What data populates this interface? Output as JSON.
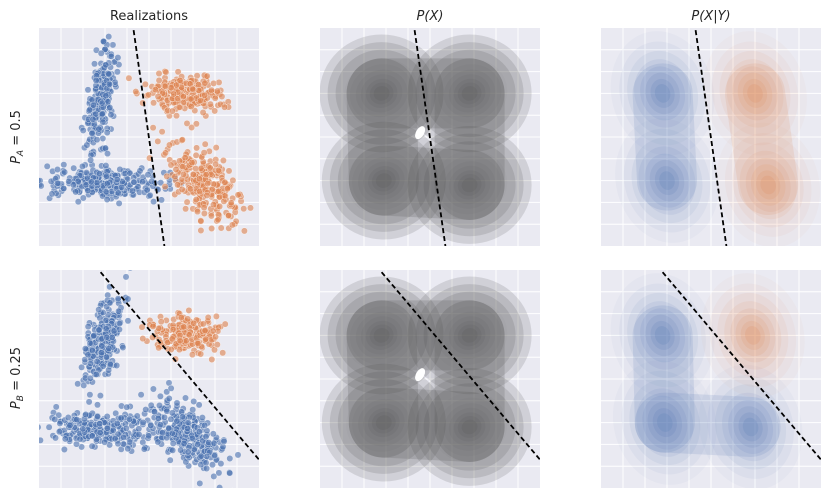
{
  "column_titles": [
    "Realizations",
    "P(X)",
    "P(X|Y)"
  ],
  "row_labels": [
    {
      "sym": "P",
      "sub": "A",
      "rest": " = 0.5"
    },
    {
      "sym": "P",
      "sub": "B",
      "rest": " = 0.25"
    }
  ],
  "colors": {
    "panel_bg": "#eaeaf2",
    "grid": "#ffffff",
    "class_a": "#4c72b0",
    "class_b": "#dd8452",
    "density_gray": "#4a4a4a",
    "boundary": "#000000"
  },
  "chart_data": [
    {
      "type": "scatter",
      "row": 0,
      "col": 0,
      "title": "Realizations",
      "xlim": [
        0,
        10
      ],
      "ylim": [
        0,
        10
      ],
      "grid": true,
      "series": [
        {
          "color": "#4c72b0",
          "clusters": [
            {
              "cx": 2.8,
              "cy": 6.7,
              "sx": 0.42,
              "sy": 1.35,
              "rho": 0.55,
              "n": 250
            },
            {
              "cx": 3.0,
              "cy": 2.9,
              "sx": 1.6,
              "sy": 0.42,
              "rho": -0.15,
              "n": 260
            }
          ]
        },
        {
          "color": "#dd8452",
          "clusters": [
            {
              "cx": 6.7,
              "cy": 7.0,
              "sx": 1.05,
              "sy": 0.55,
              "rho": -0.2,
              "n": 250
            },
            {
              "cx": 7.6,
              "cy": 2.8,
              "sx": 0.95,
              "sy": 1.05,
              "rho": -0.55,
              "n": 260
            }
          ]
        }
      ],
      "boundary": [
        [
          4.3,
          9.9
        ],
        [
          5.7,
          0.0
        ]
      ]
    },
    {
      "type": "contour",
      "row": 0,
      "col": 1,
      "title": "P(X)",
      "xlim": [
        0,
        10
      ],
      "ylim": [
        0,
        10
      ],
      "grid": true,
      "fill": "#4a4a4a",
      "peaks": [
        {
          "x": 2.8,
          "y": 7.0
        },
        {
          "x": 6.8,
          "y": 7.0
        },
        {
          "x": 2.9,
          "y": 3.0
        },
        {
          "x": 6.8,
          "y": 2.8
        }
      ],
      "boundary": [
        [
          4.3,
          9.9
        ],
        [
          5.7,
          0.0
        ]
      ]
    },
    {
      "type": "contour",
      "row": 0,
      "col": 2,
      "title": "P(X|Y)",
      "xlim": [
        0,
        10
      ],
      "ylim": [
        0,
        10
      ],
      "grid": true,
      "classes": [
        {
          "color": "#4c72b0",
          "peaks": [
            {
              "x": 2.8,
              "y": 7.0
            },
            {
              "x": 3.0,
              "y": 3.0
            }
          ]
        },
        {
          "color": "#dd8452",
          "peaks": [
            {
              "x": 7.0,
              "y": 7.0
            },
            {
              "x": 7.6,
              "y": 2.8
            }
          ]
        }
      ],
      "boundary": [
        [
          4.3,
          9.9
        ],
        [
          5.7,
          0.0
        ]
      ]
    },
    {
      "type": "scatter",
      "row": 1,
      "col": 0,
      "title": "",
      "xlim": [
        0,
        10
      ],
      "ylim": [
        0,
        10
      ],
      "grid": true,
      "series": [
        {
          "color": "#4c72b0",
          "clusters": [
            {
              "cx": 2.9,
              "cy": 6.7,
              "sx": 0.5,
              "sy": 1.3,
              "rho": 0.5,
              "n": 250
            },
            {
              "cx": 2.9,
              "cy": 2.7,
              "sx": 1.6,
              "sy": 0.45,
              "rho": -0.15,
              "n": 260
            },
            {
              "cx": 6.7,
              "cy": 2.5,
              "sx": 1.0,
              "sy": 0.95,
              "rho": -0.5,
              "n": 260
            }
          ]
        },
        {
          "color": "#dd8452",
          "clusters": [
            {
              "cx": 6.8,
              "cy": 7.1,
              "sx": 0.95,
              "sy": 0.55,
              "rho": -0.2,
              "n": 210
            }
          ]
        }
      ],
      "boundary": [
        [
          2.8,
          9.9
        ],
        [
          10.0,
          1.3
        ]
      ]
    },
    {
      "type": "contour",
      "row": 1,
      "col": 1,
      "title": "",
      "xlim": [
        0,
        10
      ],
      "ylim": [
        0,
        10
      ],
      "grid": true,
      "fill": "#4a4a4a",
      "peaks": [
        {
          "x": 2.8,
          "y": 7.0
        },
        {
          "x": 6.8,
          "y": 7.0
        },
        {
          "x": 2.9,
          "y": 3.0
        },
        {
          "x": 6.8,
          "y": 2.8
        }
      ],
      "boundary": [
        [
          2.8,
          9.9
        ],
        [
          10.0,
          1.3
        ]
      ]
    },
    {
      "type": "contour",
      "row": 1,
      "col": 2,
      "title": "",
      "xlim": [
        0,
        10
      ],
      "ylim": [
        0,
        10
      ],
      "grid": true,
      "classes": [
        {
          "color": "#4c72b0",
          "peaks": [
            {
              "x": 2.8,
              "y": 7.0
            },
            {
              "x": 2.9,
              "y": 3.0
            },
            {
              "x": 6.8,
              "y": 2.8
            }
          ]
        },
        {
          "color": "#dd8452",
          "peaks": [
            {
              "x": 6.9,
              "y": 7.0
            }
          ]
        }
      ],
      "boundary": [
        [
          2.8,
          9.9
        ],
        [
          10.0,
          1.3
        ]
      ]
    }
  ]
}
